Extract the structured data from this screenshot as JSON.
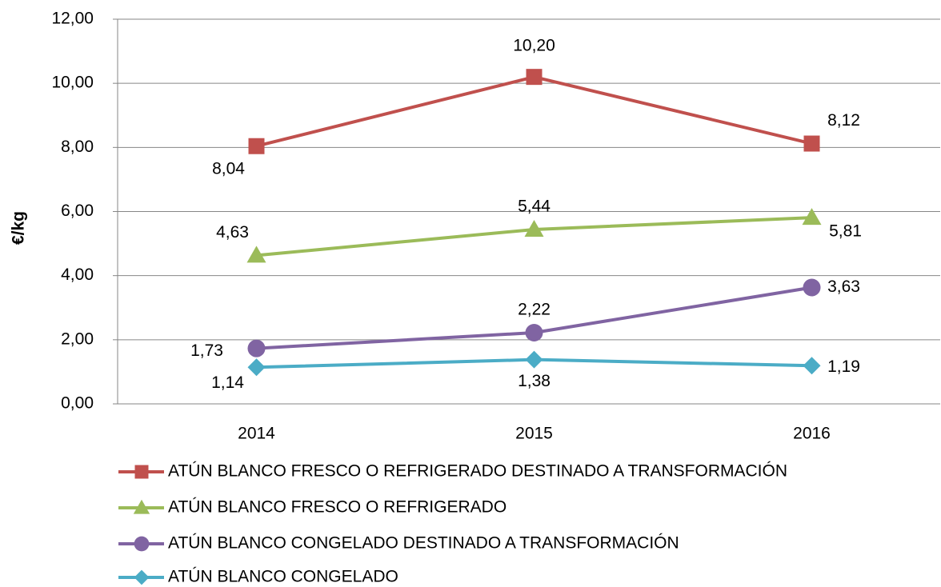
{
  "chart_data": {
    "type": "line",
    "y_label": "€/kg",
    "categories": [
      "2014",
      "2015",
      "2016"
    ],
    "series": [
      {
        "name": "ATÚN BLANCO FRESCO O REFRIGERADO DESTINADO A TRANSFORMACIÓN",
        "color": "#c0504d",
        "marker": "square",
        "values": [
          8.04,
          10.2,
          8.12
        ],
        "value_labels": [
          "8,04",
          "10,20",
          "8,12"
        ]
      },
      {
        "name": "ATÚN BLANCO FRESCO O REFRIGERADO",
        "color": "#9bbb59",
        "marker": "triangle",
        "values": [
          4.63,
          5.44,
          5.81
        ],
        "value_labels": [
          "4,63",
          "5,44",
          "5,81"
        ]
      },
      {
        "name": "ATÚN BLANCO CONGELADO DESTINADO A TRANSFORMACIÓN",
        "color": "#8064a2",
        "marker": "circle",
        "values": [
          1.73,
          2.22,
          3.63
        ],
        "value_labels": [
          "1,73",
          "2,22",
          "3,63"
        ]
      },
      {
        "name": "ATÚN BLANCO CONGELADO",
        "color": "#4bacc6",
        "marker": "diamond",
        "values": [
          1.14,
          1.38,
          1.19
        ],
        "value_labels": [
          "1,14",
          "1,38",
          "1,19"
        ]
      }
    ],
    "ylim": [
      0,
      12
    ],
    "yticks": [
      {
        "value": 0,
        "label": "0,00"
      },
      {
        "value": 2,
        "label": "2,00"
      },
      {
        "value": 4,
        "label": "4,00"
      },
      {
        "value": 6,
        "label": "6,00"
      },
      {
        "value": 8,
        "label": "8,00"
      },
      {
        "value": 10,
        "label": "10,00"
      },
      {
        "value": 12,
        "label": "12,00"
      }
    ],
    "grid": true,
    "legend": "bottom"
  }
}
